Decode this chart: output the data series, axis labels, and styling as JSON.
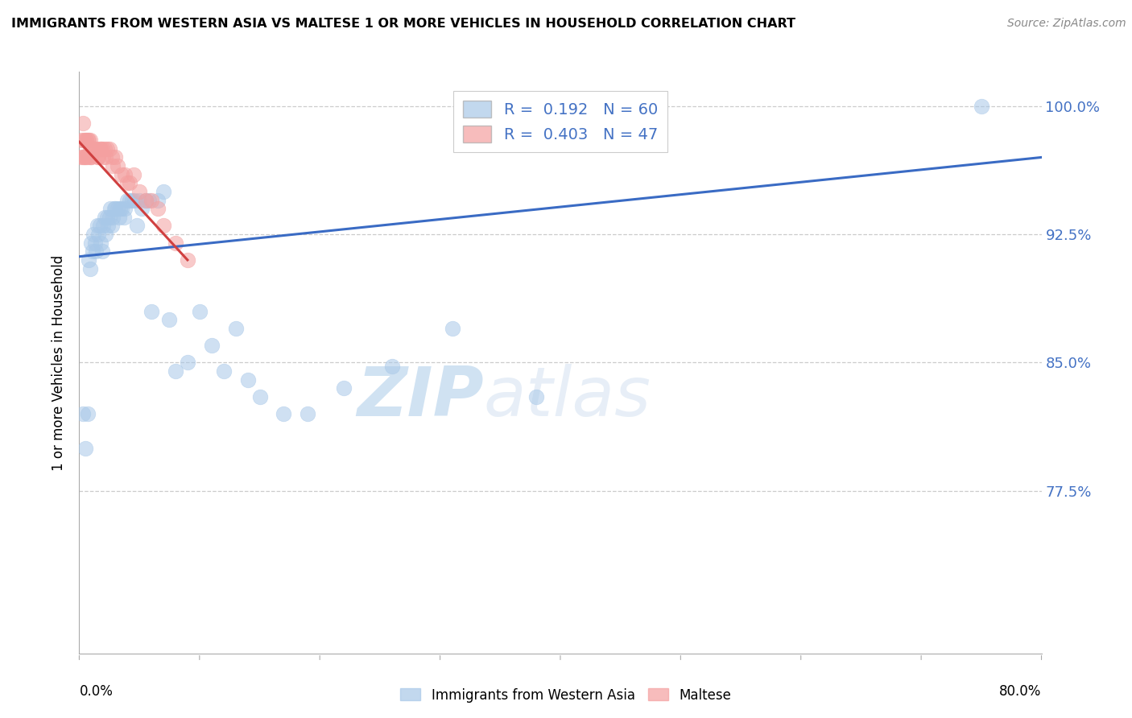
{
  "title": "IMMIGRANTS FROM WESTERN ASIA VS MALTESE 1 OR MORE VEHICLES IN HOUSEHOLD CORRELATION CHART",
  "source": "Source: ZipAtlas.com",
  "ylabel": "1 or more Vehicles in Household",
  "xlabel_bottom_left": "0.0%",
  "xlabel_bottom_right": "80.0%",
  "ytick_labels": [
    "100.0%",
    "92.5%",
    "85.0%",
    "77.5%"
  ],
  "ytick_values": [
    1.0,
    0.925,
    0.85,
    0.775
  ],
  "ylim": [
    0.68,
    1.02
  ],
  "xlim": [
    0.0,
    0.8
  ],
  "legend_blue_r": "0.192",
  "legend_blue_n": "60",
  "legend_pink_r": "0.403",
  "legend_pink_n": "47",
  "blue_color": "#a8c8e8",
  "pink_color": "#f4a0a0",
  "blue_line_color": "#3a6bc4",
  "pink_line_color": "#d04040",
  "blue_x": [
    0.003,
    0.005,
    0.007,
    0.008,
    0.009,
    0.01,
    0.011,
    0.012,
    0.013,
    0.014,
    0.015,
    0.016,
    0.017,
    0.018,
    0.019,
    0.02,
    0.021,
    0.022,
    0.023,
    0.024,
    0.025,
    0.026,
    0.027,
    0.028,
    0.029,
    0.03,
    0.032,
    0.033,
    0.034,
    0.035,
    0.037,
    0.038,
    0.04,
    0.042,
    0.044,
    0.046,
    0.048,
    0.05,
    0.052,
    0.055,
    0.058,
    0.06,
    0.065,
    0.07,
    0.075,
    0.08,
    0.09,
    0.1,
    0.11,
    0.12,
    0.13,
    0.14,
    0.15,
    0.17,
    0.19,
    0.22,
    0.26,
    0.31,
    0.38,
    0.75
  ],
  "blue_y": [
    0.82,
    0.8,
    0.82,
    0.91,
    0.905,
    0.92,
    0.915,
    0.925,
    0.92,
    0.915,
    0.93,
    0.925,
    0.93,
    0.92,
    0.915,
    0.93,
    0.935,
    0.925,
    0.935,
    0.93,
    0.935,
    0.94,
    0.93,
    0.935,
    0.94,
    0.94,
    0.94,
    0.935,
    0.94,
    0.94,
    0.935,
    0.94,
    0.945,
    0.945,
    0.945,
    0.945,
    0.93,
    0.945,
    0.94,
    0.945,
    0.945,
    0.88,
    0.945,
    0.95,
    0.875,
    0.845,
    0.85,
    0.88,
    0.86,
    0.845,
    0.87,
    0.84,
    0.83,
    0.82,
    0.82,
    0.835,
    0.848,
    0.87,
    0.83,
    1.0
  ],
  "pink_x": [
    0.001,
    0.002,
    0.003,
    0.003,
    0.004,
    0.004,
    0.005,
    0.005,
    0.006,
    0.006,
    0.007,
    0.008,
    0.008,
    0.009,
    0.009,
    0.01,
    0.01,
    0.011,
    0.012,
    0.013,
    0.014,
    0.015,
    0.016,
    0.017,
    0.018,
    0.019,
    0.02,
    0.021,
    0.022,
    0.023,
    0.025,
    0.027,
    0.028,
    0.03,
    0.032,
    0.035,
    0.038,
    0.04,
    0.042,
    0.045,
    0.05,
    0.055,
    0.06,
    0.065,
    0.07,
    0.08,
    0.09
  ],
  "pink_y": [
    0.97,
    0.98,
    0.97,
    0.99,
    0.97,
    0.98,
    0.98,
    0.97,
    0.97,
    0.98,
    0.98,
    0.98,
    0.97,
    0.975,
    0.98,
    0.97,
    0.97,
    0.975,
    0.975,
    0.975,
    0.975,
    0.97,
    0.97,
    0.975,
    0.975,
    0.975,
    0.97,
    0.975,
    0.97,
    0.975,
    0.975,
    0.97,
    0.965,
    0.97,
    0.965,
    0.96,
    0.96,
    0.955,
    0.955,
    0.96,
    0.95,
    0.945,
    0.945,
    0.94,
    0.93,
    0.92,
    0.91
  ],
  "blue_trendline_x": [
    0.0,
    0.8
  ],
  "blue_trendline_y": [
    0.912,
    0.97
  ],
  "pink_trendline_x": [
    0.0,
    0.09
  ],
  "pink_trendline_y": [
    0.979,
    0.91
  ],
  "watermark_zip": "ZIP",
  "watermark_atlas": "atlas",
  "background_color": "#ffffff",
  "grid_color": "#cccccc"
}
